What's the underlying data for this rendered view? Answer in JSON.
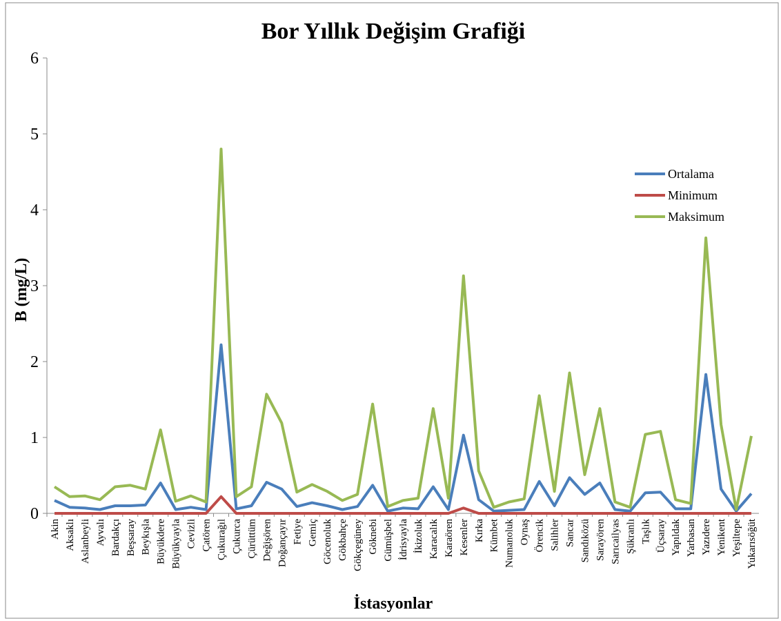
{
  "chart_data": {
    "type": "line",
    "title": "Bor Yıllık Değişim Grafiği",
    "x_label": "İstasyonlar",
    "y_label": "B (mg/L)",
    "categories": [
      "Akin",
      "Aksaklı",
      "Aslanbeyli",
      "Ayvalı",
      "Bardakçı",
      "Beşsaray",
      "Beykışla",
      "Büyükdere",
      "Büyükyayla",
      "Cevizli",
      "Çatören",
      "Çukurağıl",
      "Çukurca",
      "Çürüttüm",
      "Değişören",
      "Doğançayır",
      "Fetiye",
      "Gemiç",
      "Göcenoluk",
      "Gökbahçe",
      "Gökçegüney",
      "Göknebi",
      "Gümüşbel",
      "İdrisyayla",
      "İkizoluk",
      "Karacalık",
      "Karaören",
      "Kesenler",
      "Kırka",
      "Kümbet",
      "Numanoluk",
      "Oynaş",
      "Örencik",
      "Salihler",
      "Sancar",
      "Sandıközü",
      "Sarayören",
      "Sarıcailyas",
      "Şükranlı",
      "Taşlık",
      "Üçsaray",
      "Yapıldak",
      "Yarbasan",
      "Yazıdere",
      "Yenikent",
      "Yeşiltepe",
      "Yukarısöğüt"
    ],
    "series": [
      {
        "name": "Ortalama",
        "color": "#4a7ebb",
        "values": [
          0.17,
          0.08,
          0.07,
          0.05,
          0.1,
          0.1,
          0.11,
          0.4,
          0.05,
          0.08,
          0.05,
          2.22,
          0.06,
          0.1,
          0.41,
          0.32,
          0.09,
          0.14,
          0.1,
          0.05,
          0.09,
          0.37,
          0.03,
          0.07,
          0.06,
          0.35,
          0.05,
          1.03,
          0.18,
          0.03,
          0.04,
          0.05,
          0.42,
          0.1,
          0.47,
          0.25,
          0.4,
          0.05,
          0.03,
          0.27,
          0.28,
          0.06,
          0.06,
          1.83,
          0.32,
          0.03,
          0.26
        ]
      },
      {
        "name": "Minimum",
        "color": "#be4b48",
        "values": [
          0,
          0,
          0,
          0,
          0,
          0,
          0,
          0,
          0,
          0,
          0,
          0.22,
          0,
          0,
          0,
          0,
          0,
          0,
          0,
          0,
          0,
          0,
          0,
          0,
          0,
          0,
          0,
          0.07,
          0,
          0,
          0,
          0,
          0,
          0,
          0,
          0,
          0,
          0,
          0,
          0,
          0,
          0,
          0,
          0,
          0,
          0,
          0
        ]
      },
      {
        "name": "Maksimum",
        "color": "#98b954",
        "values": [
          0.35,
          0.22,
          0.23,
          0.18,
          0.35,
          0.37,
          0.32,
          1.1,
          0.16,
          0.23,
          0.15,
          4.8,
          0.22,
          0.35,
          1.57,
          1.19,
          0.28,
          0.38,
          0.29,
          0.17,
          0.25,
          1.44,
          0.09,
          0.17,
          0.2,
          1.38,
          0.2,
          3.13,
          0.56,
          0.08,
          0.15,
          0.19,
          1.55,
          0.29,
          1.85,
          0.51,
          1.38,
          0.15,
          0.08,
          1.04,
          1.08,
          0.18,
          0.13,
          3.63,
          1.17,
          0.05,
          1.02
        ]
      }
    ],
    "ylim": [
      0,
      6
    ],
    "yticks": [
      0,
      1,
      2,
      3,
      4,
      5,
      6
    ],
    "grid": false,
    "legend": "right"
  }
}
